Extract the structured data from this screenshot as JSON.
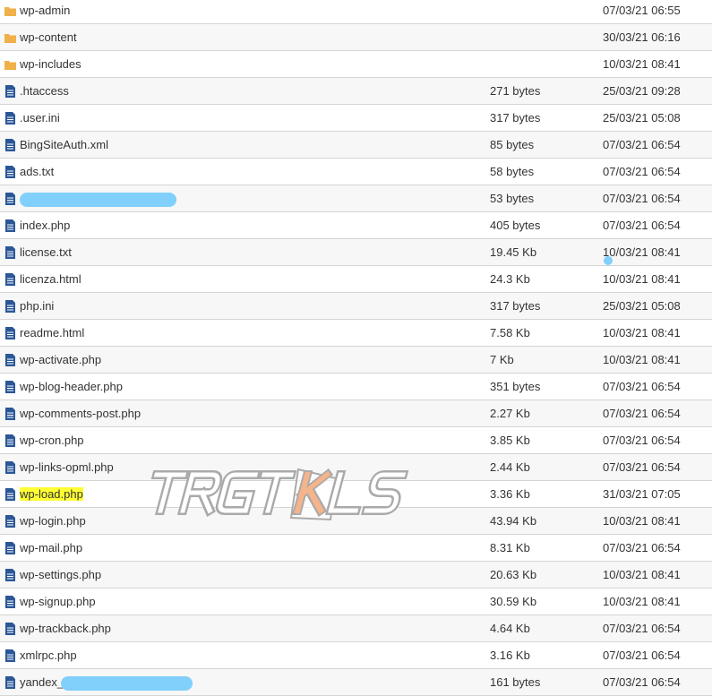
{
  "colors": {
    "folder": "#f0b04a",
    "file": "#2b5797",
    "highlight": "#ffff33",
    "redaction": "#80d0fb"
  },
  "watermark": "TRGTKLS",
  "files": [
    {
      "name": "wp-admin",
      "size": "",
      "date": "07/03/21 06:55",
      "type": "folder"
    },
    {
      "name": "wp-content",
      "size": "",
      "date": "30/03/21 06:16",
      "type": "folder"
    },
    {
      "name": "wp-includes",
      "size": "",
      "date": "10/03/21 08:41",
      "type": "folder"
    },
    {
      "name": ".htaccess",
      "size": "271 bytes",
      "date": "25/03/21 09:28",
      "type": "file"
    },
    {
      "name": ".user.ini",
      "size": "317 bytes",
      "date": "25/03/21 05:08",
      "type": "file"
    },
    {
      "name": "BingSiteAuth.xml",
      "size": "85 bytes",
      "date": "07/03/21 06:54",
      "type": "file"
    },
    {
      "name": "ads.txt",
      "size": "58 bytes",
      "date": "07/03/21 06:54",
      "type": "file"
    },
    {
      "name": "",
      "size": "53 bytes",
      "date": "07/03/21 06:54",
      "type": "file",
      "redacted": true
    },
    {
      "name": "index.php",
      "size": "405 bytes",
      "date": "07/03/21 06:54",
      "type": "file"
    },
    {
      "name": "license.txt",
      "size": "19.45 Kb",
      "date": "10/03/21 08:41",
      "type": "file"
    },
    {
      "name": "licenza.html",
      "size": "24.3 Kb",
      "date": "10/03/21 08:41",
      "type": "file"
    },
    {
      "name": "php.ini",
      "size": "317 bytes",
      "date": "25/03/21 05:08",
      "type": "file"
    },
    {
      "name": "readme.html",
      "size": "7.58 Kb",
      "date": "10/03/21 08:41",
      "type": "file"
    },
    {
      "name": "wp-activate.php",
      "size": "7 Kb",
      "date": "10/03/21 08:41",
      "type": "file"
    },
    {
      "name": "wp-blog-header.php",
      "size": "351 bytes",
      "date": "07/03/21 06:54",
      "type": "file"
    },
    {
      "name": "wp-comments-post.php",
      "size": "2.27 Kb",
      "date": "07/03/21 06:54",
      "type": "file"
    },
    {
      "name": "wp-cron.php",
      "size": "3.85 Kb",
      "date": "07/03/21 06:54",
      "type": "file"
    },
    {
      "name": "wp-links-opml.php",
      "size": "2.44 Kb",
      "date": "07/03/21 06:54",
      "type": "file"
    },
    {
      "name": "wp-load.php",
      "size": "3.36 Kb",
      "date": "31/03/21 07:05",
      "type": "file",
      "highlighted": true
    },
    {
      "name": "wp-login.php",
      "size": "43.94 Kb",
      "date": "10/03/21 08:41",
      "type": "file"
    },
    {
      "name": "wp-mail.php",
      "size": "8.31 Kb",
      "date": "07/03/21 06:54",
      "type": "file"
    },
    {
      "name": "wp-settings.php",
      "size": "20.63 Kb",
      "date": "10/03/21 08:41",
      "type": "file"
    },
    {
      "name": "wp-signup.php",
      "size": "30.59 Kb",
      "date": "10/03/21 08:41",
      "type": "file"
    },
    {
      "name": "wp-trackback.php",
      "size": "4.64 Kb",
      "date": "07/03/21 06:54",
      "type": "file"
    },
    {
      "name": "xmlrpc.php",
      "size": "3.16 Kb",
      "date": "07/03/21 06:54",
      "type": "file"
    },
    {
      "name": "yandex_",
      "size": "161 bytes",
      "date": "07/03/21 06:54",
      "type": "file",
      "redacted": true
    }
  ]
}
